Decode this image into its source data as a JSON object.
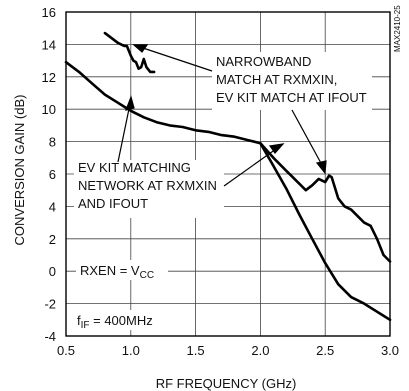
{
  "chart_data": {
    "type": "line",
    "title": "",
    "xlabel": "RF FREQUENCY (GHz)",
    "ylabel": "CONVERSION GAIN (dB)",
    "xlim": [
      0.5,
      3.0
    ],
    "ylim": [
      -4,
      16
    ],
    "x_ticks": [
      "0.5",
      "1.0",
      "1.5",
      "2.0",
      "2.5",
      "3.0"
    ],
    "y_ticks": [
      "-4",
      "-2",
      "0",
      "2",
      "4",
      "6",
      "8",
      "10",
      "12",
      "14",
      "16"
    ],
    "grid": true,
    "side_id": "MAX2410-25",
    "annotations": {
      "narrowband": [
        "NARROWBAND",
        "MATCH AT RXMXIN,",
        "EV KIT MATCH AT IFOUT"
      ],
      "evkit": [
        "EV KIT MATCHING",
        "NETWORK AT RXMXIN",
        "AND IFOUT"
      ],
      "rxen_prefix": "RXEN = V",
      "rxen_sub": "CC",
      "fif_prefix": "f",
      "fif_sub": "IF",
      "fif_suffix": " = 400MHz"
    },
    "series": [
      {
        "x": [
          0.5,
          0.6,
          0.7,
          0.8,
          0.9,
          1.0,
          1.1,
          1.2,
          1.3,
          1.4,
          1.5,
          1.6,
          1.7,
          1.8,
          1.9,
          2.0,
          2.1,
          2.2,
          2.3,
          2.4,
          2.5,
          2.6,
          2.7,
          2.8,
          2.9,
          3.0
        ],
        "values": [
          12.9,
          12.3,
          11.6,
          10.9,
          10.4,
          9.9,
          9.5,
          9.2,
          9.0,
          8.9,
          8.7,
          8.6,
          8.4,
          8.3,
          8.1,
          7.9,
          6.5,
          5.1,
          3.5,
          2.0,
          0.5,
          -0.8,
          -1.6,
          -2.0,
          -2.5,
          -3.0
        ]
      },
      {
        "x": [
          2.0,
          2.1,
          2.2,
          2.3,
          2.35,
          2.4,
          2.45,
          2.5,
          2.53,
          2.55,
          2.6,
          2.65,
          2.7,
          2.75,
          2.8,
          2.85,
          2.9,
          2.95,
          3.0
        ],
        "values": [
          7.9,
          7.0,
          6.2,
          5.4,
          5.0,
          5.3,
          5.7,
          5.5,
          5.9,
          5.8,
          4.5,
          4.0,
          3.8,
          3.4,
          3.0,
          2.8,
          2.0,
          1.0,
          0.6
        ]
      },
      {
        "x": [
          0.8,
          0.85,
          0.9,
          0.95,
          0.97,
          1.0,
          1.02,
          1.04,
          1.06,
          1.08,
          1.1,
          1.12,
          1.15,
          1.18
        ],
        "values": [
          14.7,
          14.4,
          14.1,
          13.9,
          13.9,
          13.3,
          13.0,
          12.9,
          12.5,
          12.6,
          13.1,
          12.6,
          12.3,
          12.3
        ]
      }
    ]
  }
}
